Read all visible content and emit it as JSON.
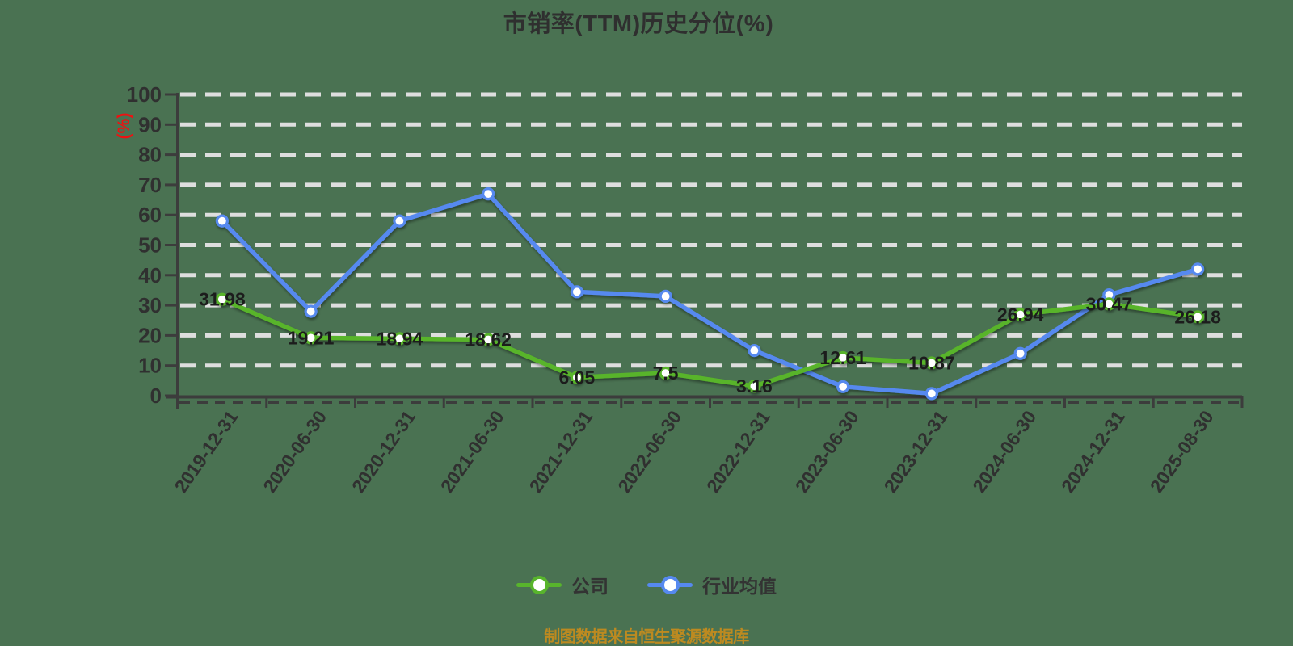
{
  "title": "市销率(TTM)历史分位(%)",
  "y_axis_unit_label": "(%)",
  "source_note": "制图数据来自恒生聚源数据库",
  "colors": {
    "background": "#4a7252",
    "grid": "#dedede",
    "axis": "#3c3c3c",
    "tick_text": "#303030",
    "value_label_text": "#1c1c1c",
    "title_text": "#2f2f2f",
    "company_series": "#58b42c",
    "industry_series": "#5689ef",
    "marker_fill": "#ffffff",
    "unit_label": "#ee1111",
    "source_note_text": "#bd8a20"
  },
  "legend": {
    "items": [
      {
        "label": "公司",
        "color": "#58b42c"
      },
      {
        "label": "行业均值",
        "color": "#5689ef"
      }
    ]
  },
  "chart_data": {
    "type": "line",
    "title": "市销率(TTM)历史分位(%)",
    "categories": [
      "2019-12-31",
      "2020-06-30",
      "2020-12-31",
      "2021-06-30",
      "2021-12-31",
      "2022-06-30",
      "2022-12-31",
      "2023-06-30",
      "2023-12-31",
      "2024-06-30",
      "2024-12-31",
      "2025-08-30"
    ],
    "series": [
      {
        "name": "公司",
        "color": "#58b42c",
        "show_value_labels": true,
        "values": [
          31.98,
          19.21,
          18.94,
          18.62,
          6.05,
          7.5,
          3.16,
          12.61,
          10.87,
          26.94,
          30.47,
          26.18
        ]
      },
      {
        "name": "行业均值",
        "color": "#5689ef",
        "show_value_labels": false,
        "values": [
          58,
          28,
          58,
          67,
          34.5,
          33,
          15,
          3,
          0.7,
          14,
          33.5,
          42
        ]
      }
    ],
    "ylim": [
      0,
      100
    ],
    "y_tick_interval": 10,
    "grid": "horizontal-dashed",
    "legend_position": "bottom",
    "x_label_rotation_deg": -55
  }
}
